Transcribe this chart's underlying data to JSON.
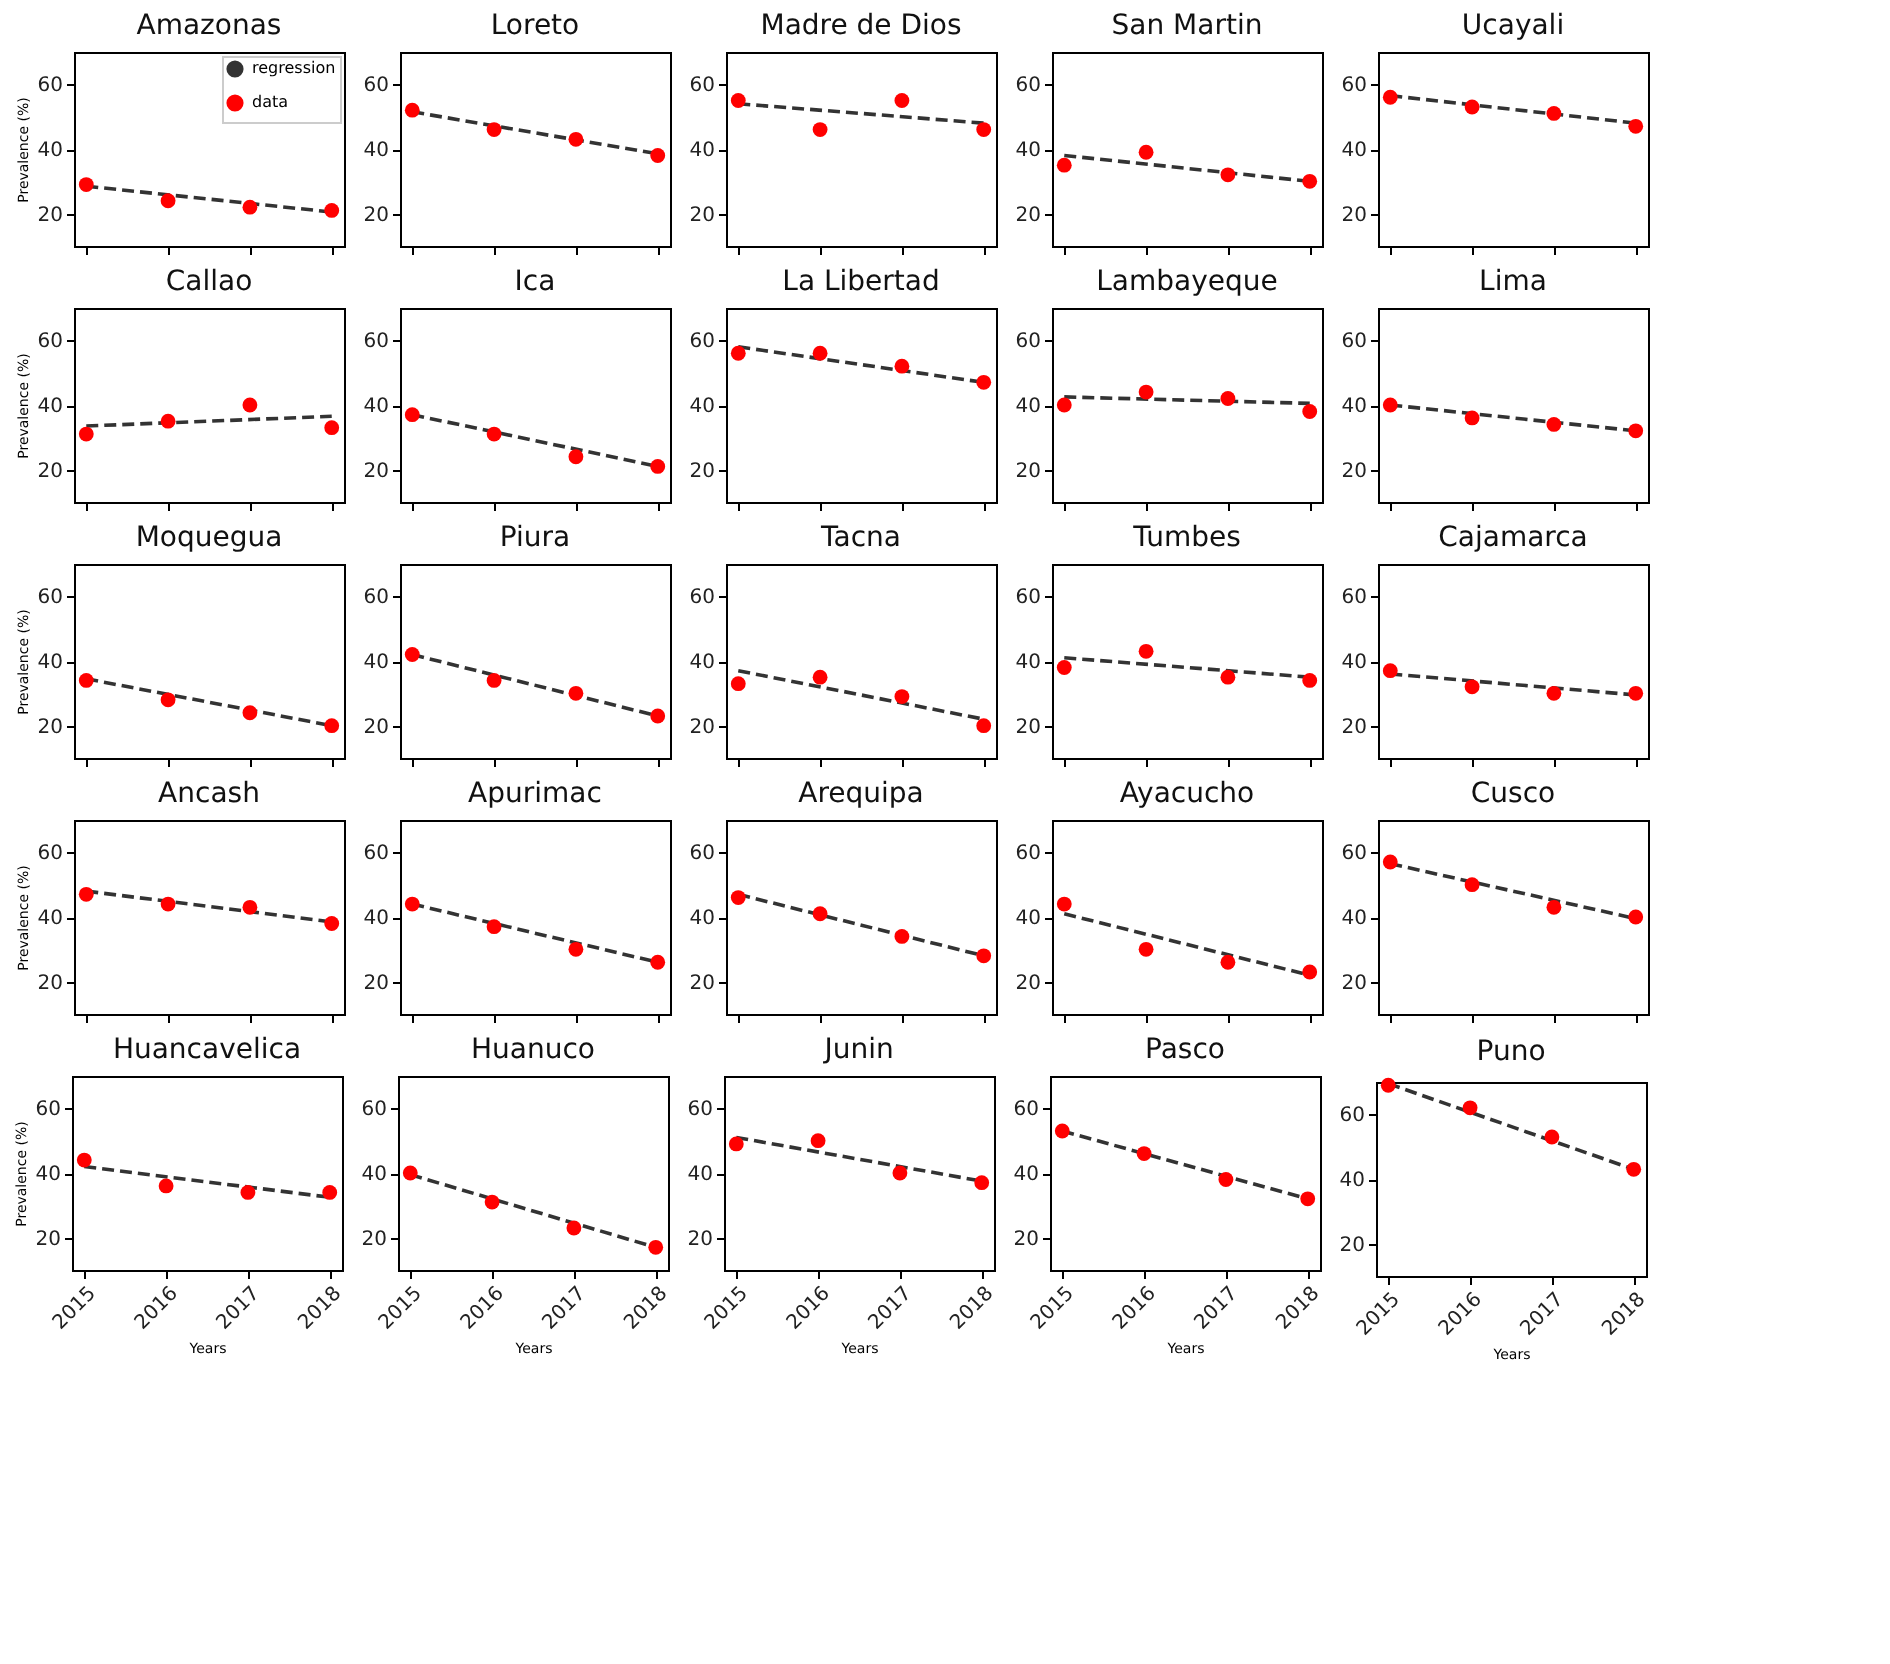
{
  "chart_data": [
    {
      "type": "scatter",
      "title": "Amazonas",
      "ylabel": "Prevalence (%)",
      "xlim": [
        2014.85,
        2018.15
      ],
      "xticks": [
        2015,
        2016,
        2017,
        2018
      ],
      "ylim": [
        10,
        70
      ],
      "yticks": [
        20,
        40,
        60
      ],
      "tick_labels": "y",
      "legend": "top right",
      "series": [
        {
          "type": "line",
          "name": "regression",
          "color": "#333333",
          "line_style": "dashed",
          "x": [
            2015,
            2018
          ],
          "values": [
            28.5,
            20.5
          ]
        },
        {
          "type": "scatter",
          "name": "data",
          "color": "#ff0000",
          "marker": "circle",
          "x": [
            2015,
            2016,
            2017,
            2018
          ],
          "values": [
            29,
            24,
            22,
            21
          ]
        }
      ]
    },
    {
      "type": "scatter",
      "title": "Loreto",
      "xlim": [
        2014.85,
        2018.15
      ],
      "xticks": [
        2015,
        2016,
        2017,
        2018
      ],
      "ylim": [
        10,
        70
      ],
      "yticks": [
        20,
        40,
        60
      ],
      "tick_labels": "y",
      "series": [
        {
          "type": "line",
          "color": "#333333",
          "line_style": "dashed",
          "x": [
            2015,
            2018
          ],
          "values": [
            51.5,
            38.5
          ]
        },
        {
          "type": "scatter",
          "color": "#ff0000",
          "marker": "circle",
          "x": [
            2015,
            2016,
            2017,
            2018
          ],
          "values": [
            52,
            46,
            43,
            38
          ]
        }
      ]
    },
    {
      "type": "scatter",
      "title": "Madre de Dios",
      "xlim": [
        2014.85,
        2018.15
      ],
      "xticks": [
        2015,
        2016,
        2017,
        2018
      ],
      "ylim": [
        10,
        70
      ],
      "yticks": [
        20,
        40,
        60
      ],
      "tick_labels": "y",
      "series": [
        {
          "type": "line",
          "color": "#333333",
          "line_style": "dashed",
          "x": [
            2015,
            2018
          ],
          "values": [
            54,
            48
          ]
        },
        {
          "type": "scatter",
          "color": "#ff0000",
          "marker": "circle",
          "x": [
            2015,
            2016,
            2017,
            2018
          ],
          "values": [
            55,
            46,
            55,
            46
          ]
        }
      ]
    },
    {
      "type": "scatter",
      "title": "San Martin",
      "xlim": [
        2014.85,
        2018.15
      ],
      "xticks": [
        2015,
        2016,
        2017,
        2018
      ],
      "ylim": [
        10,
        70
      ],
      "yticks": [
        20,
        40,
        60
      ],
      "tick_labels": "y",
      "series": [
        {
          "type": "line",
          "color": "#333333",
          "line_style": "dashed",
          "x": [
            2015,
            2018
          ],
          "values": [
            38,
            30
          ]
        },
        {
          "type": "scatter",
          "color": "#ff0000",
          "marker": "circle",
          "x": [
            2015,
            2016,
            2017,
            2018
          ],
          "values": [
            35,
            39,
            32,
            30
          ]
        }
      ]
    },
    {
      "type": "scatter",
      "title": "Ucayali",
      "xlim": [
        2014.85,
        2018.15
      ],
      "xticks": [
        2015,
        2016,
        2017,
        2018
      ],
      "ylim": [
        10,
        70
      ],
      "yticks": [
        20,
        40,
        60
      ],
      "tick_labels": "y",
      "series": [
        {
          "type": "line",
          "color": "#333333",
          "line_style": "dashed",
          "x": [
            2015,
            2018
          ],
          "values": [
            56.5,
            48
          ]
        },
        {
          "type": "scatter",
          "color": "#ff0000",
          "marker": "circle",
          "x": [
            2015,
            2016,
            2017,
            2018
          ],
          "values": [
            56,
            53,
            51,
            47
          ]
        }
      ]
    },
    {
      "type": "scatter",
      "title": "Callao",
      "ylabel": "Prevalence (%)",
      "xlim": [
        2014.85,
        2018.15
      ],
      "xticks": [
        2015,
        2016,
        2017,
        2018
      ],
      "ylim": [
        10,
        70
      ],
      "yticks": [
        20,
        40,
        60
      ],
      "tick_labels": "y",
      "series": [
        {
          "type": "line",
          "color": "#333333",
          "line_style": "dashed",
          "x": [
            2015,
            2018
          ],
          "values": [
            33.5,
            36.5
          ]
        },
        {
          "type": "scatter",
          "color": "#ff0000",
          "marker": "circle",
          "x": [
            2015,
            2016,
            2017,
            2018
          ],
          "values": [
            31,
            35,
            40,
            33
          ]
        }
      ]
    },
    {
      "type": "scatter",
      "title": "Ica",
      "xlim": [
        2014.85,
        2018.15
      ],
      "xticks": [
        2015,
        2016,
        2017,
        2018
      ],
      "ylim": [
        10,
        70
      ],
      "yticks": [
        20,
        40,
        60
      ],
      "tick_labels": "y",
      "series": [
        {
          "type": "line",
          "color": "#333333",
          "line_style": "dashed",
          "x": [
            2015,
            2018
          ],
          "values": [
            37,
            21
          ]
        },
        {
          "type": "scatter",
          "color": "#ff0000",
          "marker": "circle",
          "x": [
            2015,
            2016,
            2017,
            2018
          ],
          "values": [
            37,
            31,
            24,
            21
          ]
        }
      ]
    },
    {
      "type": "scatter",
      "title": "La Libertad",
      "xlim": [
        2014.85,
        2018.15
      ],
      "xticks": [
        2015,
        2016,
        2017,
        2018
      ],
      "ylim": [
        10,
        70
      ],
      "yticks": [
        20,
        40,
        60
      ],
      "tick_labels": "y",
      "series": [
        {
          "type": "line",
          "color": "#333333",
          "line_style": "dashed",
          "x": [
            2015,
            2018
          ],
          "values": [
            58,
            47
          ]
        },
        {
          "type": "scatter",
          "color": "#ff0000",
          "marker": "circle",
          "x": [
            2015,
            2016,
            2017,
            2018
          ],
          "values": [
            56,
            56,
            52,
            47
          ]
        }
      ]
    },
    {
      "type": "scatter",
      "title": "Lambayeque",
      "xlim": [
        2014.85,
        2018.15
      ],
      "xticks": [
        2015,
        2016,
        2017,
        2018
      ],
      "ylim": [
        10,
        70
      ],
      "yticks": [
        20,
        40,
        60
      ],
      "tick_labels": "y",
      "series": [
        {
          "type": "line",
          "color": "#333333",
          "line_style": "dashed",
          "x": [
            2015,
            2018
          ],
          "values": [
            42.5,
            40.5
          ]
        },
        {
          "type": "scatter",
          "color": "#ff0000",
          "marker": "circle",
          "x": [
            2015,
            2016,
            2017,
            2018
          ],
          "values": [
            40,
            44,
            42,
            38
          ]
        }
      ]
    },
    {
      "type": "scatter",
      "title": "Lima",
      "xlim": [
        2014.85,
        2018.15
      ],
      "xticks": [
        2015,
        2016,
        2017,
        2018
      ],
      "ylim": [
        10,
        70
      ],
      "yticks": [
        20,
        40,
        60
      ],
      "tick_labels": "y",
      "series": [
        {
          "type": "line",
          "color": "#333333",
          "line_style": "dashed",
          "x": [
            2015,
            2018
          ],
          "values": [
            40,
            32
          ]
        },
        {
          "type": "scatter",
          "color": "#ff0000",
          "marker": "circle",
          "x": [
            2015,
            2016,
            2017,
            2018
          ],
          "values": [
            40,
            36,
            34,
            32
          ]
        }
      ]
    },
    {
      "type": "scatter",
      "title": "Moquegua",
      "ylabel": "Prevalence (%)",
      "xlim": [
        2014.85,
        2018.15
      ],
      "xticks": [
        2015,
        2016,
        2017,
        2018
      ],
      "ylim": [
        10,
        70
      ],
      "yticks": [
        20,
        40,
        60
      ],
      "tick_labels": "y",
      "series": [
        {
          "type": "line",
          "color": "#333333",
          "line_style": "dashed",
          "x": [
            2015,
            2018
          ],
          "values": [
            34.5,
            20
          ]
        },
        {
          "type": "scatter",
          "color": "#ff0000",
          "marker": "circle",
          "x": [
            2015,
            2016,
            2017,
            2018
          ],
          "values": [
            34,
            28,
            24,
            20
          ]
        }
      ]
    },
    {
      "type": "scatter",
      "title": "Piura",
      "xlim": [
        2014.85,
        2018.15
      ],
      "xticks": [
        2015,
        2016,
        2017,
        2018
      ],
      "ylim": [
        10,
        70
      ],
      "yticks": [
        20,
        40,
        60
      ],
      "tick_labels": "y",
      "series": [
        {
          "type": "line",
          "color": "#333333",
          "line_style": "dashed",
          "x": [
            2015,
            2018
          ],
          "values": [
            42,
            23
          ]
        },
        {
          "type": "scatter",
          "color": "#ff0000",
          "marker": "circle",
          "x": [
            2015,
            2016,
            2017,
            2018
          ],
          "values": [
            42,
            34,
            30,
            23
          ]
        }
      ]
    },
    {
      "type": "scatter",
      "title": "Tacna",
      "xlim": [
        2014.85,
        2018.15
      ],
      "xticks": [
        2015,
        2016,
        2017,
        2018
      ],
      "ylim": [
        10,
        70
      ],
      "yticks": [
        20,
        40,
        60
      ],
      "tick_labels": "y",
      "series": [
        {
          "type": "line",
          "color": "#333333",
          "line_style": "dashed",
          "x": [
            2015,
            2018
          ],
          "values": [
            37,
            22
          ]
        },
        {
          "type": "scatter",
          "color": "#ff0000",
          "marker": "circle",
          "x": [
            2015,
            2016,
            2017,
            2018
          ],
          "values": [
            33,
            35,
            29,
            20
          ]
        }
      ]
    },
    {
      "type": "scatter",
      "title": "Tumbes",
      "xlim": [
        2014.85,
        2018.15
      ],
      "xticks": [
        2015,
        2016,
        2017,
        2018
      ],
      "ylim": [
        10,
        70
      ],
      "yticks": [
        20,
        40,
        60
      ],
      "tick_labels": "y",
      "series": [
        {
          "type": "line",
          "color": "#333333",
          "line_style": "dashed",
          "x": [
            2015,
            2018
          ],
          "values": [
            41,
            35
          ]
        },
        {
          "type": "scatter",
          "color": "#ff0000",
          "marker": "circle",
          "x": [
            2015,
            2016,
            2017,
            2018
          ],
          "values": [
            38,
            43,
            35,
            34
          ]
        }
      ]
    },
    {
      "type": "scatter",
      "title": "Cajamarca",
      "xlim": [
        2014.85,
        2018.15
      ],
      "xticks": [
        2015,
        2016,
        2017,
        2018
      ],
      "ylim": [
        10,
        70
      ],
      "yticks": [
        20,
        40,
        60
      ],
      "tick_labels": "y",
      "series": [
        {
          "type": "line",
          "color": "#333333",
          "line_style": "dashed",
          "x": [
            2015,
            2018
          ],
          "values": [
            36,
            29.5
          ]
        },
        {
          "type": "scatter",
          "color": "#ff0000",
          "marker": "circle",
          "x": [
            2015,
            2016,
            2017,
            2018
          ],
          "values": [
            37,
            32,
            30,
            30
          ]
        }
      ]
    },
    {
      "type": "scatter",
      "title": "Ancash",
      "ylabel": "Prevalence (%)",
      "xlim": [
        2014.85,
        2018.15
      ],
      "xticks": [
        2015,
        2016,
        2017,
        2018
      ],
      "ylim": [
        10,
        70
      ],
      "yticks": [
        20,
        40,
        60
      ],
      "tick_labels": "y",
      "series": [
        {
          "type": "line",
          "color": "#333333",
          "line_style": "dashed",
          "x": [
            2015,
            2018
          ],
          "values": [
            48,
            38.5
          ]
        },
        {
          "type": "scatter",
          "color": "#ff0000",
          "marker": "circle",
          "x": [
            2015,
            2016,
            2017,
            2018
          ],
          "values": [
            47,
            44,
            43,
            38
          ]
        }
      ]
    },
    {
      "type": "scatter",
      "title": "Apurimac",
      "xlim": [
        2014.85,
        2018.15
      ],
      "xticks": [
        2015,
        2016,
        2017,
        2018
      ],
      "ylim": [
        10,
        70
      ],
      "yticks": [
        20,
        40,
        60
      ],
      "tick_labels": "y",
      "series": [
        {
          "type": "line",
          "color": "#333333",
          "line_style": "dashed",
          "x": [
            2015,
            2018
          ],
          "values": [
            44,
            26
          ]
        },
        {
          "type": "scatter",
          "color": "#ff0000",
          "marker": "circle",
          "x": [
            2015,
            2016,
            2017,
            2018
          ],
          "values": [
            44,
            37,
            30,
            26
          ]
        }
      ]
    },
    {
      "type": "scatter",
      "title": "Arequipa",
      "xlim": [
        2014.85,
        2018.15
      ],
      "xticks": [
        2015,
        2016,
        2017,
        2018
      ],
      "ylim": [
        10,
        70
      ],
      "yticks": [
        20,
        40,
        60
      ],
      "tick_labels": "y",
      "series": [
        {
          "type": "line",
          "color": "#333333",
          "line_style": "dashed",
          "x": [
            2015,
            2018
          ],
          "values": [
            47,
            28
          ]
        },
        {
          "type": "scatter",
          "color": "#ff0000",
          "marker": "circle",
          "x": [
            2015,
            2016,
            2017,
            2018
          ],
          "values": [
            46,
            41,
            34,
            28
          ]
        }
      ]
    },
    {
      "type": "scatter",
      "title": "Ayacucho",
      "xlim": [
        2014.85,
        2018.15
      ],
      "xticks": [
        2015,
        2016,
        2017,
        2018
      ],
      "ylim": [
        10,
        70
      ],
      "yticks": [
        20,
        40,
        60
      ],
      "tick_labels": "y",
      "series": [
        {
          "type": "line",
          "color": "#333333",
          "line_style": "dashed",
          "x": [
            2015,
            2018
          ],
          "values": [
            41,
            22
          ]
        },
        {
          "type": "scatter",
          "color": "#ff0000",
          "marker": "circle",
          "x": [
            2015,
            2016,
            2017,
            2018
          ],
          "values": [
            44,
            30,
            26,
            23
          ]
        }
      ]
    },
    {
      "type": "scatter",
      "title": "Cusco",
      "xlim": [
        2014.85,
        2018.15
      ],
      "xticks": [
        2015,
        2016,
        2017,
        2018
      ],
      "ylim": [
        10,
        70
      ],
      "yticks": [
        20,
        40,
        60
      ],
      "tick_labels": "y",
      "series": [
        {
          "type": "line",
          "color": "#333333",
          "line_style": "dashed",
          "x": [
            2015,
            2018
          ],
          "values": [
            56.5,
            39.5
          ]
        },
        {
          "type": "scatter",
          "color": "#ff0000",
          "marker": "circle",
          "x": [
            2015,
            2016,
            2017,
            2018
          ],
          "values": [
            57,
            50,
            43,
            40
          ]
        }
      ]
    },
    {
      "type": "scatter",
      "title": "Huancavelica",
      "xlabel": "Years",
      "ylabel": "Prevalence (%)",
      "xlim": [
        2014.85,
        2018.15
      ],
      "xticks": [
        2015,
        2016,
        2017,
        2018
      ],
      "ylim": [
        10,
        70
      ],
      "yticks": [
        20,
        40,
        60
      ],
      "series": [
        {
          "type": "line",
          "color": "#333333",
          "line_style": "dashed",
          "x": [
            2015,
            2018
          ],
          "values": [
            42,
            32.5
          ]
        },
        {
          "type": "scatter",
          "color": "#ff0000",
          "marker": "circle",
          "x": [
            2015,
            2016,
            2017,
            2018
          ],
          "values": [
            44,
            36,
            34,
            34
          ]
        }
      ]
    },
    {
      "type": "scatter",
      "title": "Huanuco",
      "xlabel": "Years",
      "xlim": [
        2014.85,
        2018.15
      ],
      "xticks": [
        2015,
        2016,
        2017,
        2018
      ],
      "ylim": [
        10,
        70
      ],
      "yticks": [
        20,
        40,
        60
      ],
      "series": [
        {
          "type": "line",
          "color": "#333333",
          "line_style": "dashed",
          "x": [
            2015,
            2018
          ],
          "values": [
            39.5,
            17
          ]
        },
        {
          "type": "scatter",
          "color": "#ff0000",
          "marker": "circle",
          "x": [
            2015,
            2016,
            2017,
            2018
          ],
          "values": [
            40,
            31,
            23,
            17
          ]
        }
      ]
    },
    {
      "type": "scatter",
      "title": "Junin",
      "xlabel": "Years",
      "xlim": [
        2014.85,
        2018.15
      ],
      "xticks": [
        2015,
        2016,
        2017,
        2018
      ],
      "ylim": [
        10,
        70
      ],
      "yticks": [
        20,
        40,
        60
      ],
      "series": [
        {
          "type": "line",
          "color": "#333333",
          "line_style": "dashed",
          "x": [
            2015,
            2018
          ],
          "values": [
            51,
            37.5
          ]
        },
        {
          "type": "scatter",
          "color": "#ff0000",
          "marker": "circle",
          "x": [
            2015,
            2016,
            2017,
            2018
          ],
          "values": [
            49,
            50,
            40,
            37
          ]
        }
      ]
    },
    {
      "type": "scatter",
      "title": "Pasco",
      "xlabel": "Years",
      "xlim": [
        2014.85,
        2018.15
      ],
      "xticks": [
        2015,
        2016,
        2017,
        2018
      ],
      "ylim": [
        10,
        70
      ],
      "yticks": [
        20,
        40,
        60
      ],
      "series": [
        {
          "type": "line",
          "color": "#333333",
          "line_style": "dashed",
          "x": [
            2015,
            2018
          ],
          "values": [
            53,
            32
          ]
        },
        {
          "type": "scatter",
          "color": "#ff0000",
          "marker": "circle",
          "x": [
            2015,
            2016,
            2017,
            2018
          ],
          "values": [
            53,
            46,
            38,
            32
          ]
        }
      ]
    },
    {
      "type": "scatter",
      "title": "Puno",
      "xlabel": "Years",
      "xlim": [
        2014.85,
        2018.15
      ],
      "xticks": [
        2015,
        2016,
        2017,
        2018
      ],
      "ylim": [
        10,
        70
      ],
      "yticks": [
        20,
        40,
        60
      ],
      "series": [
        {
          "type": "line",
          "color": "#333333",
          "line_style": "dashed",
          "x": [
            2015,
            2018
          ],
          "values": [
            69.5,
            43
          ]
        },
        {
          "type": "scatter",
          "color": "#ff0000",
          "marker": "circle",
          "x": [
            2015,
            2016,
            2017,
            2018
          ],
          "values": [
            69,
            62,
            53,
            43
          ]
        }
      ]
    }
  ]
}
